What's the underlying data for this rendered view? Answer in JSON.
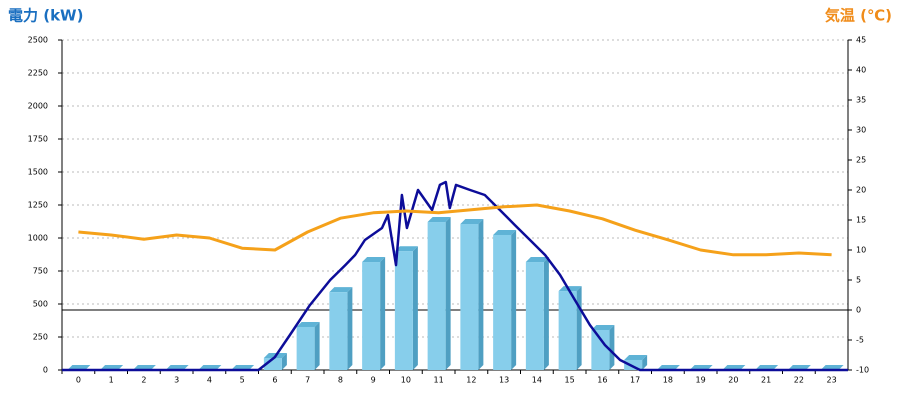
{
  "chart_data": {
    "type": "bar",
    "left_axis_title": "電力 (kW)",
    "right_axis_title": "気温 (℃)",
    "left_title_color": "#1a6fc0",
    "right_title_color": "#f08c1a",
    "categories": [
      "0",
      "1",
      "2",
      "3",
      "4",
      "5",
      "6",
      "7",
      "8",
      "9",
      "10",
      "11",
      "12",
      "13",
      "14",
      "15",
      "16",
      "17",
      "18",
      "19",
      "20",
      "21",
      "22",
      "23"
    ],
    "ylim": [
      0,
      2500
    ],
    "yticks": [
      0,
      250,
      500,
      750,
      1000,
      1250,
      1500,
      1750,
      2000,
      2250,
      2500
    ],
    "y2lim": [
      -10,
      45
    ],
    "y2ticks": [
      -10,
      -5,
      0,
      5,
      10,
      15,
      20,
      25,
      30,
      35,
      40,
      45
    ],
    "grid": true,
    "series": [
      {
        "type": "bar",
        "color": "#87ceeb",
        "values": [
          0,
          0,
          0,
          0,
          0,
          0,
          91,
          326,
          590,
          818,
          900,
          1121,
          1106,
          1023,
          818,
          598,
          303,
          76,
          0,
          0,
          0,
          0,
          0,
          0
        ]
      },
      {
        "type": "line",
        "color": "#0d0d99",
        "x": [
          -0.5,
          5.5,
          6.0,
          6.46,
          7.07,
          7.69,
          8.15,
          8.45,
          8.75,
          9.27,
          9.45,
          9.7,
          9.88,
          10.03,
          10.37,
          10.8,
          11.04,
          11.22,
          11.34,
          11.53,
          11.96,
          12.41,
          12.87,
          13.33,
          13.79,
          14.25,
          14.71,
          15.16,
          15.62,
          16.08,
          16.54,
          17.15,
          23.5
        ],
        "values": [
          0,
          0,
          98,
          265,
          492,
          682,
          795,
          871,
          985,
          1076,
          1174,
          795,
          1326,
          1076,
          1364,
          1212,
          1402,
          1424,
          1227,
          1402,
          1364,
          1326,
          1212,
          1098,
          985,
          871,
          720,
          530,
          341,
          189,
          76,
          0,
          0
        ]
      },
      {
        "type": "line",
        "axis": "y2",
        "color": "#f5a11a",
        "values": [
          13,
          12.5,
          11.8,
          12.5,
          12,
          10.3,
          10,
          13,
          15.3,
          16.2,
          16.5,
          16.2,
          16.7,
          17.2,
          17.5,
          16.5,
          15.2,
          13.3,
          11.7,
          10,
          9.2,
          9.2,
          9.5,
          9.2
        ]
      }
    ]
  }
}
